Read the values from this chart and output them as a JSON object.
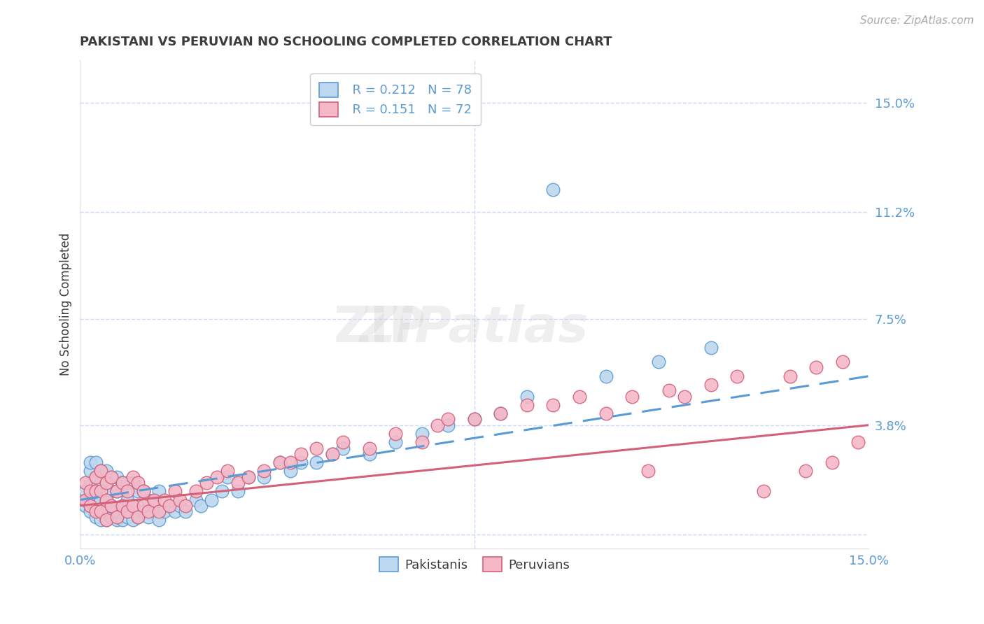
{
  "title": "PAKISTANI VS PERUVIAN NO SCHOOLING COMPLETED CORRELATION CHART",
  "source": "Source: ZipAtlas.com",
  "ylabel": "No Schooling Completed",
  "xlim": [
    0.0,
    0.15
  ],
  "ylim": [
    -0.005,
    0.165
  ],
  "yticks": [
    0.0,
    0.038,
    0.075,
    0.112,
    0.15
  ],
  "ytick_labels": [
    "",
    "3.8%",
    "7.5%",
    "11.2%",
    "15.0%"
  ],
  "title_color": "#3c3c3c",
  "axis_color": "#5b9bd5",
  "grid_color": "#c9daf8",
  "background_color": "#ffffff",
  "pakistani_color": "#bdd7ee",
  "pakistani_edge": "#5b9bd5",
  "peruvian_color": "#f4b8c8",
  "peruvian_edge": "#d4607a",
  "pakistani_line_color": "#5b9bd5",
  "peruvian_line_color": "#d4607a",
  "R_pakistani": 0.212,
  "N_pakistani": 78,
  "R_peruvian": 0.151,
  "N_peruvian": 72,
  "legend_label_pakistani": "Pakistanis",
  "legend_label_peruvian": "Peruvians",
  "pakistani_x": [
    0.001,
    0.001,
    0.002,
    0.002,
    0.002,
    0.002,
    0.002,
    0.003,
    0.003,
    0.003,
    0.003,
    0.003,
    0.004,
    0.004,
    0.004,
    0.004,
    0.004,
    0.005,
    0.005,
    0.005,
    0.005,
    0.005,
    0.006,
    0.006,
    0.006,
    0.006,
    0.007,
    0.007,
    0.007,
    0.007,
    0.008,
    0.008,
    0.008,
    0.009,
    0.009,
    0.009,
    0.01,
    0.01,
    0.01,
    0.011,
    0.011,
    0.012,
    0.012,
    0.013,
    0.013,
    0.014,
    0.015,
    0.015,
    0.016,
    0.017,
    0.018,
    0.019,
    0.02,
    0.022,
    0.023,
    0.025,
    0.027,
    0.028,
    0.03,
    0.032,
    0.035,
    0.038,
    0.04,
    0.042,
    0.045,
    0.048,
    0.05,
    0.055,
    0.06,
    0.065,
    0.07,
    0.075,
    0.08,
    0.085,
    0.09,
    0.1,
    0.11,
    0.12
  ],
  "pakistani_y": [
    0.01,
    0.015,
    0.008,
    0.012,
    0.018,
    0.022,
    0.025,
    0.006,
    0.01,
    0.015,
    0.02,
    0.025,
    0.005,
    0.008,
    0.012,
    0.018,
    0.022,
    0.005,
    0.008,
    0.012,
    0.018,
    0.022,
    0.006,
    0.01,
    0.015,
    0.02,
    0.005,
    0.008,
    0.015,
    0.02,
    0.005,
    0.01,
    0.018,
    0.006,
    0.012,
    0.018,
    0.005,
    0.01,
    0.018,
    0.006,
    0.015,
    0.008,
    0.015,
    0.006,
    0.012,
    0.01,
    0.005,
    0.015,
    0.008,
    0.01,
    0.008,
    0.01,
    0.008,
    0.012,
    0.01,
    0.012,
    0.015,
    0.02,
    0.015,
    0.02,
    0.02,
    0.025,
    0.022,
    0.025,
    0.025,
    0.028,
    0.03,
    0.028,
    0.032,
    0.035,
    0.038,
    0.04,
    0.042,
    0.048,
    0.12,
    0.055,
    0.06,
    0.065
  ],
  "peruvian_x": [
    0.001,
    0.001,
    0.002,
    0.002,
    0.003,
    0.003,
    0.003,
    0.004,
    0.004,
    0.004,
    0.005,
    0.005,
    0.005,
    0.006,
    0.006,
    0.007,
    0.007,
    0.008,
    0.008,
    0.009,
    0.009,
    0.01,
    0.01,
    0.011,
    0.011,
    0.012,
    0.012,
    0.013,
    0.014,
    0.015,
    0.016,
    0.017,
    0.018,
    0.019,
    0.02,
    0.022,
    0.024,
    0.026,
    0.028,
    0.03,
    0.032,
    0.035,
    0.038,
    0.04,
    0.042,
    0.045,
    0.048,
    0.05,
    0.055,
    0.06,
    0.065,
    0.068,
    0.07,
    0.075,
    0.08,
    0.085,
    0.09,
    0.095,
    0.1,
    0.105,
    0.108,
    0.112,
    0.115,
    0.12,
    0.125,
    0.13,
    0.135,
    0.138,
    0.14,
    0.143,
    0.145,
    0.148
  ],
  "peruvian_y": [
    0.012,
    0.018,
    0.01,
    0.015,
    0.008,
    0.015,
    0.02,
    0.008,
    0.015,
    0.022,
    0.005,
    0.012,
    0.018,
    0.01,
    0.02,
    0.006,
    0.015,
    0.01,
    0.018,
    0.008,
    0.015,
    0.01,
    0.02,
    0.006,
    0.018,
    0.01,
    0.015,
    0.008,
    0.012,
    0.008,
    0.012,
    0.01,
    0.015,
    0.012,
    0.01,
    0.015,
    0.018,
    0.02,
    0.022,
    0.018,
    0.02,
    0.022,
    0.025,
    0.025,
    0.028,
    0.03,
    0.028,
    0.032,
    0.03,
    0.035,
    0.032,
    0.038,
    0.04,
    0.04,
    0.042,
    0.045,
    0.045,
    0.048,
    0.042,
    0.048,
    0.022,
    0.05,
    0.048,
    0.052,
    0.055,
    0.015,
    0.055,
    0.022,
    0.058,
    0.025,
    0.06,
    0.032
  ]
}
